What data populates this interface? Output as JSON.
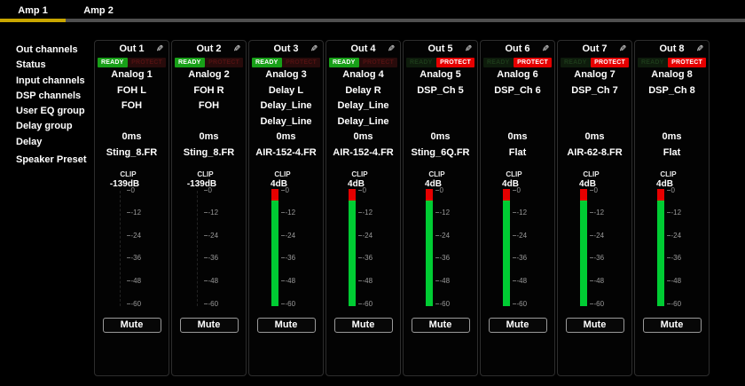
{
  "tabs": [
    {
      "label": "Amp 1",
      "active": true
    },
    {
      "label": "Amp 2",
      "active": false
    }
  ],
  "sidebar": {
    "rows": [
      "Out channels",
      "Status",
      "Input channels",
      "DSP channels",
      "User EQ group",
      "Delay group",
      "Delay",
      "Speaker Preset"
    ]
  },
  "badges": {
    "ready": "READY",
    "protect": "PROTECT"
  },
  "meter": {
    "clip_label": "CLIP",
    "ticks": [
      "0",
      "-12",
      "-24",
      "-36",
      "-48",
      "-60"
    ],
    "scale_min_db": -60,
    "scale_max_db": 0
  },
  "buttons": {
    "mute": "Mute"
  },
  "icons": {
    "edit": "✎"
  },
  "colors": {
    "accent_yellow": "#c9a600",
    "inactive_underline": "#4f4f4f",
    "ready_green": "#18a018",
    "protect_red": "#e60000",
    "meter_green": "#00cc33",
    "meter_red": "#e60000"
  },
  "channels": [
    {
      "name": "Out 1",
      "status": "READY",
      "input": "Analog 1",
      "dsp": "FOH L",
      "eq": "FOH",
      "delay_group": "",
      "delay": "0ms",
      "preset": "Sting_8.FR",
      "level": "-139dB"
    },
    {
      "name": "Out 2",
      "status": "READY",
      "input": "Analog 2",
      "dsp": "FOH R",
      "eq": "FOH",
      "delay_group": "",
      "delay": "0ms",
      "preset": "Sting_8.FR",
      "level": "-139dB"
    },
    {
      "name": "Out 3",
      "status": "READY",
      "input": "Analog 3",
      "dsp": "Delay L",
      "eq": "Delay_Line",
      "delay_group": "Delay_Line",
      "delay": "0ms",
      "preset": "AIR-152-4.FR",
      "level": "4dB"
    },
    {
      "name": "Out 4",
      "status": "READY",
      "input": "Analog 4",
      "dsp": "Delay R",
      "eq": "Delay_Line",
      "delay_group": "Delay_Line",
      "delay": "0ms",
      "preset": "AIR-152-4.FR",
      "level": "4dB"
    },
    {
      "name": "Out 5",
      "status": "PROTECT",
      "input": "Analog 5",
      "dsp": "DSP_Ch 5",
      "eq": "",
      "delay_group": "",
      "delay": "0ms",
      "preset": "Sting_6Q.FR",
      "level": "4dB"
    },
    {
      "name": "Out 6",
      "status": "PROTECT",
      "input": "Analog 6",
      "dsp": "DSP_Ch 6",
      "eq": "",
      "delay_group": "",
      "delay": "0ms",
      "preset": "Flat",
      "level": "4dB"
    },
    {
      "name": "Out 7",
      "status": "PROTECT",
      "input": "Analog 7",
      "dsp": "DSP_Ch 7",
      "eq": "",
      "delay_group": "",
      "delay": "0ms",
      "preset": "AIR-62-8.FR",
      "level": "4dB"
    },
    {
      "name": "Out 8",
      "status": "PROTECT",
      "input": "Analog 8",
      "dsp": "DSP_Ch 8",
      "eq": "",
      "delay_group": "",
      "delay": "0ms",
      "preset": "Flat",
      "level": "4dB"
    }
  ]
}
